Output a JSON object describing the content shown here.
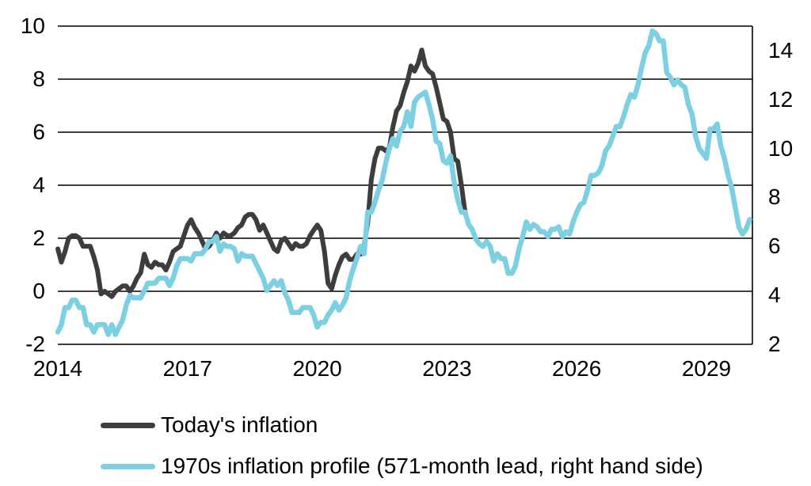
{
  "chart_data": {
    "type": "line",
    "title": "",
    "grid": "horizontal",
    "legend_position": "bottom-left",
    "x_axis": {
      "start": 2014.0,
      "end": 2030.06,
      "tick_labels": [
        "2014",
        "2017",
        "2020",
        "2023",
        "2026",
        "2029"
      ],
      "tick_values": [
        2014,
        2017,
        2020,
        2023,
        2026,
        2029
      ]
    },
    "left_axis": {
      "min": -2,
      "max": 10,
      "tick_labels": [
        "10",
        "8",
        "6",
        "4",
        "2",
        "0",
        "-2"
      ],
      "tick_values": [
        10,
        8,
        6,
        4,
        2,
        0,
        -2
      ]
    },
    "right_axis": {
      "min": 2,
      "max": 15,
      "tick_labels": [
        "14",
        "12",
        "10",
        "8",
        "6",
        "4",
        "2"
      ],
      "tick_values": [
        14,
        12,
        10,
        8,
        6,
        4,
        2
      ]
    },
    "series": [
      {
        "name": "Today's inflation",
        "axis": "left",
        "color": "#3d3d3d",
        "stroke_width": 6,
        "start_x": 2014.0,
        "interval_years": 0.0833333,
        "values": [
          1.6,
          1.1,
          1.5,
          2.0,
          2.1,
          2.1,
          2.0,
          1.7,
          1.7,
          1.7,
          1.3,
          0.8,
          -0.1,
          0.0,
          -0.1,
          -0.2,
          0.0,
          0.1,
          0.2,
          0.2,
          0.0,
          0.2,
          0.5,
          0.7,
          1.4,
          1.0,
          0.9,
          1.1,
          1.0,
          1.0,
          0.8,
          1.1,
          1.5,
          1.6,
          1.7,
          2.1,
          2.5,
          2.7,
          2.4,
          2.2,
          1.9,
          1.6,
          1.7,
          1.9,
          2.2,
          2.0,
          2.2,
          2.1,
          2.1,
          2.2,
          2.4,
          2.5,
          2.8,
          2.9,
          2.9,
          2.7,
          2.3,
          2.5,
          2.2,
          1.9,
          1.6,
          1.5,
          1.9,
          2.0,
          1.8,
          1.6,
          1.8,
          1.7,
          1.7,
          1.8,
          2.1,
          2.3,
          2.5,
          2.3,
          1.5,
          0.3,
          0.1,
          0.6,
          1.0,
          1.3,
          1.4,
          1.2,
          1.2,
          1.4,
          1.4,
          1.7,
          2.6,
          4.2,
          5.0,
          5.4,
          5.4,
          5.3,
          5.4,
          6.2,
          6.8,
          7.0,
          7.5,
          7.9,
          8.5,
          8.3,
          8.6,
          9.1,
          8.5,
          8.3,
          8.2,
          7.7,
          7.1,
          6.5,
          6.4,
          6.0,
          5.0,
          4.9,
          4.0,
          3.0
        ]
      },
      {
        "name": "1970s inflation profile (571-month lead, right hand side)",
        "axis": "right",
        "color": "#7dd0e1",
        "stroke_width": 6.5,
        "start_x": 2014.0,
        "interval_years": 0.0833333,
        "values": [
          2.5,
          2.8,
          3.5,
          3.5,
          3.8,
          3.8,
          3.5,
          3.5,
          2.8,
          2.8,
          2.5,
          2.8,
          2.8,
          2.8,
          2.4,
          2.8,
          2.4,
          2.7,
          3.0,
          3.6,
          4.0,
          3.9,
          3.9,
          3.9,
          4.2,
          4.5,
          4.5,
          4.5,
          4.7,
          4.7,
          4.7,
          4.4,
          4.7,
          5.2,
          5.5,
          5.5,
          5.5,
          5.4,
          5.7,
          5.7,
          5.7,
          5.9,
          6.2,
          6.2,
          6.4,
          5.8,
          6.1,
          6.0,
          6.0,
          5.9,
          5.4,
          5.7,
          5.6,
          5.6,
          5.6,
          5.3,
          5.0,
          4.7,
          4.2,
          4.4,
          4.6,
          4.4,
          4.6,
          4.1,
          3.8,
          3.3,
          3.3,
          3.3,
          3.5,
          3.5,
          3.5,
          3.2,
          2.7,
          2.9,
          2.9,
          3.2,
          3.4,
          3.7,
          3.4,
          3.6,
          3.9,
          4.6,
          5.1,
          5.5,
          6.0,
          5.7,
          7.4,
          7.4,
          7.8,
          8.3,
          8.7,
          9.4,
          10.0,
          10.4,
          10.1,
          10.7,
          10.9,
          11.5,
          10.9,
          11.9,
          12.1,
          12.2,
          12.3,
          11.8,
          11.2,
          10.3,
          10.2,
          9.5,
          9.4,
          9.7,
          8.6,
          7.9,
          7.4,
          7.4,
          6.9,
          6.7,
          6.3,
          6.1,
          6.0,
          6.2,
          6.0,
          5.4,
          5.7,
          5.5,
          5.5,
          4.9,
          4.9,
          5.2,
          5.9,
          6.4,
          7.0,
          6.7,
          6.9,
          6.8,
          6.6,
          6.6,
          6.4,
          6.7,
          6.7,
          6.8,
          6.4,
          6.6,
          6.5,
          7.0,
          7.4,
          7.7,
          7.8,
          8.3,
          8.9,
          8.9,
          9.0,
          9.3,
          9.9,
          10.1,
          10.5,
          10.9,
          10.9,
          11.3,
          11.8,
          12.2,
          12.1,
          12.6,
          13.3,
          13.9,
          14.2,
          14.8,
          14.7,
          14.4,
          14.4,
          13.1,
          12.9,
          12.6,
          12.8,
          12.6,
          12.5,
          11.8,
          11.4,
          10.5,
          10.0,
          9.8,
          9.6,
          10.8,
          10.8,
          11.0,
          10.1,
          9.6,
          8.9,
          8.4,
          7.6,
          6.8,
          6.5,
          6.7,
          7.1
        ]
      }
    ],
    "style": {
      "gridline_color": "#000000",
      "background": "#ffffff",
      "axis_border_right": true
    }
  }
}
